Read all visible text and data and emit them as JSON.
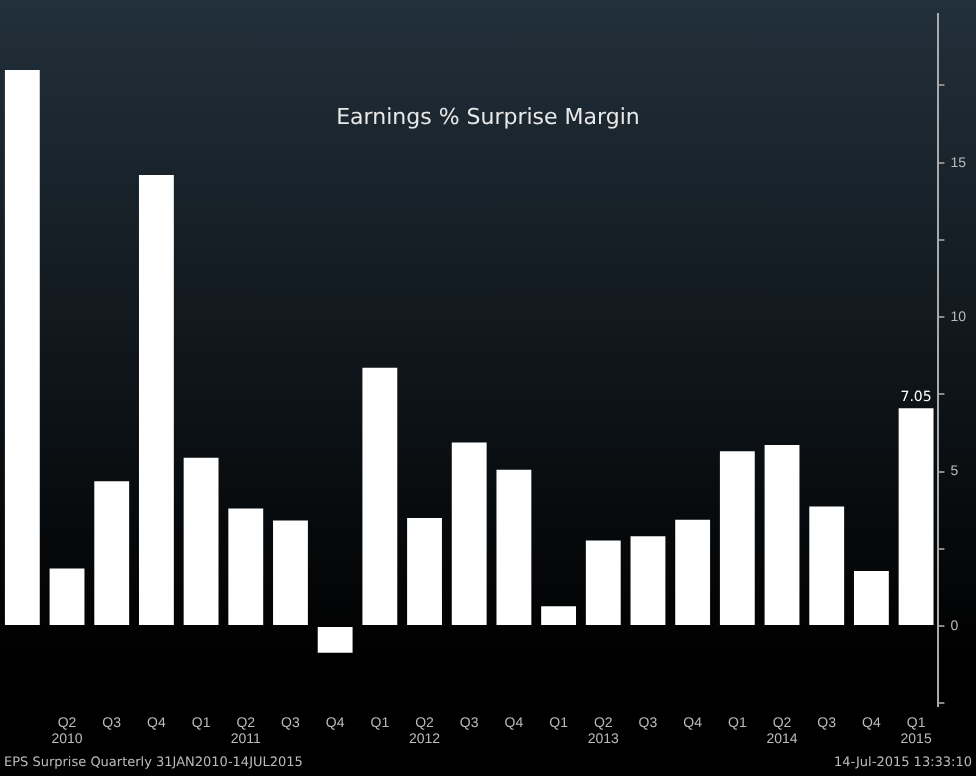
{
  "chart_data": {
    "type": "bar",
    "title": "Earnings % Surprise Margin",
    "categories": [
      null,
      "Q2\n2010",
      "Q3",
      "Q4",
      "Q1",
      "Q2\n2011",
      "Q3",
      "Q4",
      "Q1",
      "Q2\n2012",
      "Q3",
      "Q4",
      "Q1",
      "Q2\n2013",
      "Q3",
      "Q4",
      "Q1",
      "Q2\n2014",
      "Q3",
      "Q4",
      "Q1\n2015"
    ],
    "values": [
      18.0,
      1.86,
      4.69,
      14.6,
      5.45,
      3.81,
      3.42,
      -0.86,
      8.36,
      3.5,
      5.94,
      5.06,
      0.64,
      2.77,
      2.91,
      3.44,
      5.66,
      5.86,
      3.87,
      1.78,
      7.05
    ],
    "value_labels": [
      null,
      null,
      null,
      null,
      null,
      null,
      null,
      null,
      null,
      null,
      null,
      null,
      null,
      null,
      null,
      null,
      null,
      null,
      null,
      null,
      "7.05"
    ],
    "color": "#ffffff",
    "ylim": [
      -2.6,
      19.8
    ],
    "yticks": [
      {
        "value": -2.5,
        "label": null
      },
      0,
      {
        "value": 2.5,
        "label": null
      },
      5,
      {
        "value": 7.5,
        "label": null
      },
      10,
      {
        "value": 12.5,
        "label": null
      },
      15,
      {
        "value": 17.5,
        "label": null
      }
    ],
    "grid": false,
    "legend": false,
    "annotations": [
      "EPS Surprise  Quarterly 31JAN2010-14JUL2015",
      "14-Jul-2015 13:33:10"
    ]
  }
}
